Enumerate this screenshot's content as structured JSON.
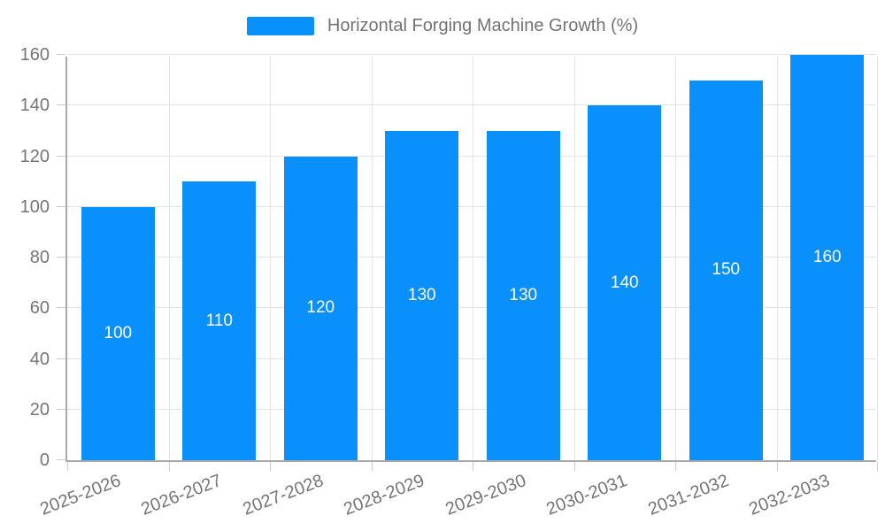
{
  "chart_data": {
    "type": "bar",
    "title": "Horizontal Forging Machine Growth (%)",
    "categories": [
      "2025-2026",
      "2026-2027",
      "2027-2028",
      "2028-2029",
      "2029-2030",
      "2030-2031",
      "2031-2032",
      "2032-2033"
    ],
    "values": [
      100,
      110,
      120,
      130,
      130,
      140,
      150,
      160
    ],
    "xlabel": "",
    "ylabel": "",
    "ylim": [
      0,
      160
    ],
    "yticks": [
      0,
      20,
      40,
      60,
      80,
      100,
      120,
      140,
      160
    ],
    "grid": true,
    "legend_position": "top",
    "x_label_rotation_deg": -21,
    "data_labels_inside_bars": true,
    "colors": {
      "bar": "#0990FB",
      "data_label": "#FFFFFF",
      "axis_line": "#A9A9A9",
      "gridline": "#E3E3E3",
      "tick": "#CCCCCC",
      "axis_text": "#757575",
      "legend_text": "#737373",
      "background": "#FFFFFF"
    }
  }
}
